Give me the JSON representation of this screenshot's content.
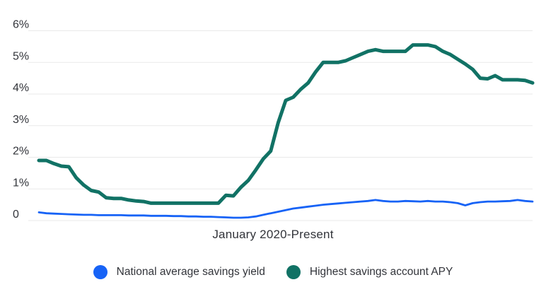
{
  "chart_data": {
    "type": "line",
    "title": "",
    "xlabel": "January 2020-Present",
    "ylabel": "",
    "ylim": [
      0,
      6
    ],
    "grid": "horizontal",
    "legend_position": "bottom-center",
    "x_unit": "month",
    "x_range_label": "January 2020-Present",
    "y_ticks": [
      {
        "label": "6%",
        "value": 6
      },
      {
        "label": "5%",
        "value": 5
      },
      {
        "label": "4%",
        "value": 4
      },
      {
        "label": "3%",
        "value": 3
      },
      {
        "label": "2%",
        "value": 2
      },
      {
        "label": "1%",
        "value": 1
      },
      {
        "label": "0",
        "value": 0
      }
    ],
    "series": [
      {
        "name": "National average savings yield",
        "color": "#1763f6",
        "values": [
          0.26,
          0.23,
          0.22,
          0.21,
          0.2,
          0.19,
          0.18,
          0.18,
          0.17,
          0.17,
          0.17,
          0.17,
          0.16,
          0.16,
          0.16,
          0.15,
          0.15,
          0.15,
          0.14,
          0.14,
          0.13,
          0.13,
          0.12,
          0.12,
          0.11,
          0.1,
          0.09,
          0.09,
          0.1,
          0.13,
          0.18,
          0.23,
          0.28,
          0.33,
          0.38,
          0.41,
          0.44,
          0.47,
          0.5,
          0.52,
          0.54,
          0.56,
          0.58,
          0.6,
          0.62,
          0.65,
          0.62,
          0.6,
          0.6,
          0.62,
          0.61,
          0.6,
          0.62,
          0.6,
          0.6,
          0.58,
          0.55,
          0.48,
          0.55,
          0.58,
          0.6,
          0.6,
          0.61,
          0.62,
          0.65,
          0.62,
          0.6
        ]
      },
      {
        "name": "Highest savings account APY",
        "color": "#117265",
        "values": [
          1.9,
          1.9,
          1.8,
          1.72,
          1.7,
          1.35,
          1.12,
          0.95,
          0.9,
          0.72,
          0.7,
          0.7,
          0.65,
          0.62,
          0.6,
          0.55,
          0.55,
          0.55,
          0.55,
          0.55,
          0.55,
          0.55,
          0.55,
          0.55,
          0.55,
          0.8,
          0.78,
          1.05,
          1.27,
          1.6,
          1.95,
          2.2,
          3.1,
          3.8,
          3.9,
          4.15,
          4.35,
          4.7,
          5.0,
          5.0,
          5.0,
          5.05,
          5.15,
          5.25,
          5.35,
          5.4,
          5.35,
          5.35,
          5.35,
          5.35,
          5.55,
          5.55,
          5.55,
          5.5,
          5.35,
          5.25,
          5.1,
          4.95,
          4.78,
          4.5,
          4.48,
          4.58,
          4.45,
          4.45,
          4.45,
          4.43,
          4.35
        ]
      }
    ]
  },
  "colors": {
    "grid": "#e9e9e9",
    "text": "#32343a",
    "background": "#ffffff"
  }
}
